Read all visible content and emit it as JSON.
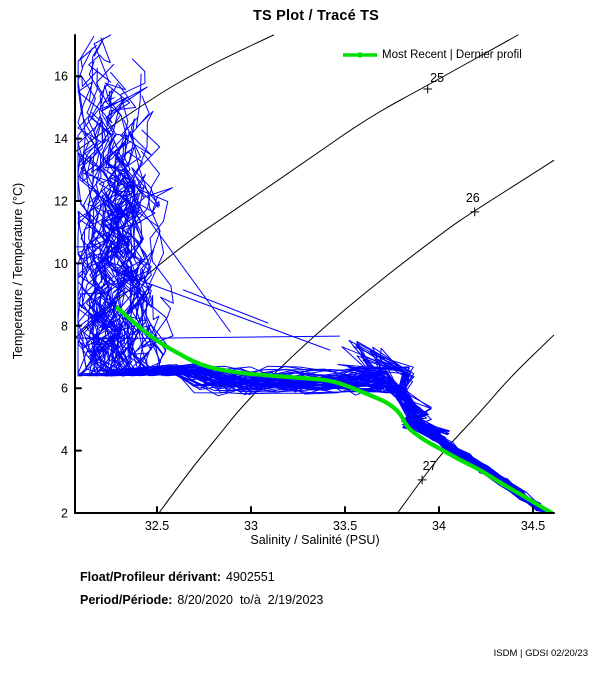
{
  "title": "TS Plot / Tracé TS",
  "legend": {
    "label": "Most Recent | Dernier profil",
    "color": "#00E000"
  },
  "axes": {
    "x": {
      "label": "Salinity / Salinité (PSU)",
      "tick_labels": [
        "32.5",
        "33",
        "33.5",
        "34",
        "34.5"
      ]
    },
    "y": {
      "label": "Temperature / Température (°C)",
      "tick_labels": [
        "2",
        "4",
        "6",
        "8",
        "10",
        "12",
        "14",
        "16"
      ]
    }
  },
  "footer": {
    "float_label": "Float/Profileur dérivant:",
    "float_value": "4902551",
    "period_label": "Period/Période:",
    "period_value": "8/20/2020  to/à  2/19/2023",
    "credit": "ISDM | GDSI 02/20/23"
  },
  "chart_data": {
    "type": "line",
    "title": "TS Plot / Tracé TS",
    "xlabel": "Salinity / Salinité (PSU)",
    "ylabel": "Temperature / Température (°C)",
    "xlim": [
      32.07,
      34.61
    ],
    "ylim": [
      2,
      17.32
    ],
    "grid": false,
    "legend_position": "top-right",
    "profile_color": "#0000FF",
    "most_recent_color": "#00E000",
    "contour_color": "#000000",
    "density_contours": [
      {
        "sigma_t": 24,
        "label": "",
        "points_st": [
          [
            32.06,
            13.6
          ],
          [
            32.42,
            15.1
          ],
          [
            32.76,
            16.3
          ],
          [
            33.12,
            17.32
          ]
        ]
      },
      {
        "sigma_t": 25,
        "label": "25",
        "label_st": [
          33.99,
          15.94
        ],
        "marker_st": [
          33.94,
          15.59
        ],
        "points_st": [
          [
            32.06,
            7.64
          ],
          [
            32.52,
            10.1
          ],
          [
            32.99,
            12.03
          ],
          [
            33.3,
            13.31
          ],
          [
            33.62,
            14.66
          ],
          [
            33.96,
            15.78
          ],
          [
            34.42,
            17.32
          ]
        ]
      },
      {
        "sigma_t": 26,
        "label": "26",
        "label_st": [
          34.18,
          12.1
        ],
        "marker_st": [
          34.19,
          11.65
        ],
        "points_st": [
          [
            32.51,
            2.0
          ],
          [
            32.68,
            3.4
          ],
          [
            32.81,
            4.35
          ],
          [
            32.97,
            5.56
          ],
          [
            33.32,
            7.61
          ],
          [
            33.69,
            9.47
          ],
          [
            34.06,
            11.17
          ],
          [
            34.18,
            11.65
          ],
          [
            34.61,
            13.3
          ]
        ]
      },
      {
        "sigma_t": 27,
        "label": "27",
        "label_st": [
          33.95,
          3.51
        ],
        "marker_st": [
          33.91,
          3.06
        ],
        "points_st": [
          [
            33.78,
            2.0
          ],
          [
            33.91,
            3.09
          ],
          [
            34.03,
            4.02
          ],
          [
            34.22,
            5.24
          ],
          [
            34.38,
            6.36
          ],
          [
            34.61,
            7.7
          ]
        ]
      }
    ],
    "most_recent_profile": {
      "s": [
        32.29,
        32.38,
        32.49,
        32.6,
        32.73,
        32.89,
        33.07,
        33.26,
        33.42,
        33.53,
        33.63,
        33.72,
        33.79,
        33.83,
        33.87,
        33.92,
        34.0,
        34.11,
        34.22,
        34.32,
        34.43,
        34.51,
        34.6
      ],
      "t": [
        8.57,
        8.09,
        7.55,
        7.16,
        6.74,
        6.52,
        6.42,
        6.33,
        6.26,
        6.04,
        5.78,
        5.56,
        5.24,
        4.76,
        4.56,
        4.34,
        4.08,
        3.7,
        3.38,
        2.99,
        2.61,
        2.32,
        2.0
      ]
    },
    "outlier_segments_st": [
      [
        [
          32.12,
          7.58
        ],
        [
          33.47,
          7.67
        ]
      ],
      [
        [
          32.26,
          9.79
        ],
        [
          33.42,
          7.22
        ]
      ],
      [
        [
          32.12,
          14.18
        ],
        [
          32.89,
          7.8
        ]
      ],
      [
        [
          32.06,
          10.53
        ],
        [
          32.19,
          10.53
        ]
      ],
      [
        [
          32.06,
          7.61
        ],
        [
          32.29,
          7.61
        ]
      ],
      [
        [
          32.64,
          9.15
        ],
        [
          33.09,
          8.09
        ]
      ]
    ],
    "ensemble": {
      "count": 60,
      "seed": 11,
      "surface_s_min": 32.13,
      "surface_s_spread": 0.3,
      "surface_t_min": 6.2,
      "surface_t_spread": 11.2,
      "band_t_min": 6.0,
      "band_t_spread": 0.5,
      "band_t_jitter": 0.5,
      "knee_s": 33.77,
      "deep_curve": [
        [
          33.86,
          5.0
        ],
        [
          33.92,
          4.7
        ],
        [
          33.98,
          4.45
        ],
        [
          34.05,
          4.15
        ],
        [
          34.14,
          3.8
        ],
        [
          34.24,
          3.4
        ],
        [
          34.34,
          3.0
        ],
        [
          34.44,
          2.55
        ],
        [
          34.53,
          2.2
        ],
        [
          34.59,
          1.95
        ]
      ]
    }
  }
}
